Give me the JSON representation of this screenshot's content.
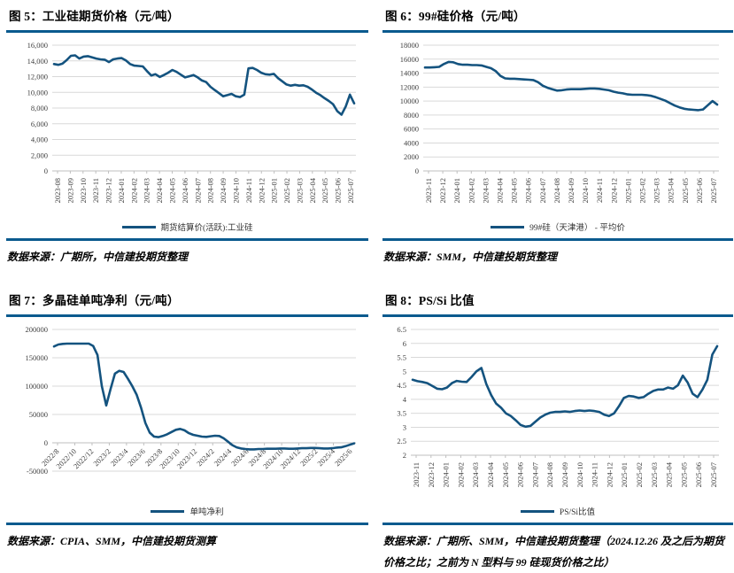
{
  "page": {
    "background": "#ffffff",
    "rule_color": "#0a5a8e",
    "line_color": "#14537f",
    "gridline_color": "#d9d9d9",
    "axis_color": "#bfbfbf"
  },
  "chart_data": [
    {
      "type": "line",
      "title": "图 5：工业硅期货价格（元/吨）",
      "legend": "期货结算价(活跃):工业硅",
      "source": "数据来源：广期所，中信建投期货整理",
      "ylim": [
        0,
        16000
      ],
      "grid": true,
      "legend_position": "bottom",
      "y_ticks": [
        "0",
        "2,000",
        "4,000",
        "6,000",
        "8,000",
        "10,000",
        "12,000",
        "14,000",
        "16,000"
      ],
      "x_tick_labels": [
        "2023-08",
        "2023-09",
        "2023-10",
        "2023-11",
        "2023-12",
        "2024-01",
        "2024-02",
        "2024-03",
        "2024-04",
        "2024-05",
        "2024-06",
        "2024-07",
        "2024-08",
        "2024-09",
        "2024-10",
        "2024-11",
        "2024-12",
        "2025-01",
        "2025-02",
        "2025-03",
        "2025-04",
        "2025-05",
        "2025-06",
        "2025-07"
      ],
      "values": [
        13600,
        13500,
        13650,
        14100,
        14650,
        14700,
        14300,
        14550,
        14600,
        14450,
        14300,
        14200,
        14150,
        13850,
        14200,
        14300,
        14350,
        14050,
        13600,
        13400,
        13350,
        13300,
        12700,
        12150,
        12300,
        11950,
        12200,
        12500,
        12850,
        12600,
        12250,
        11900,
        12050,
        12200,
        11900,
        11500,
        11300,
        10700,
        10300,
        9900,
        9500,
        9650,
        9800,
        9500,
        9400,
        9700,
        13050,
        13100,
        12850,
        12500,
        12300,
        12250,
        12350,
        11800,
        11400,
        11000,
        10850,
        10950,
        10850,
        10900,
        10700,
        10350,
        9950,
        9650,
        9250,
        8900,
        8500,
        7600,
        7150,
        8200,
        9700,
        8600
      ]
    },
    {
      "type": "line",
      "title": "图 6：99#硅价格（元/吨）",
      "legend": "99#硅（天津港） - 平均价",
      "source": "数据来源：SMM，中信建投期货整理",
      "ylim": [
        0,
        18000
      ],
      "grid": true,
      "legend_position": "bottom",
      "y_ticks": [
        "0",
        "2000",
        "4000",
        "6000",
        "8000",
        "10000",
        "12000",
        "14000",
        "16000",
        "18000"
      ],
      "x_tick_labels": [
        "2023-11",
        "2023-12",
        "2024-01",
        "2024-02",
        "2024-03",
        "2024-04",
        "2024-05",
        "2024-06",
        "2024-07",
        "2024-08",
        "2024-09",
        "2024-10",
        "2024-11",
        "2024-12",
        "2025-01",
        "2025-02",
        "2025-03",
        "2025-04",
        "2025-05",
        "2025-06",
        "2025-07"
      ],
      "values": [
        14800,
        14800,
        14850,
        14900,
        15300,
        15600,
        15550,
        15300,
        15200,
        15200,
        15150,
        15150,
        15100,
        14900,
        14700,
        14300,
        13600,
        13250,
        13200,
        13200,
        13150,
        13100,
        13050,
        13000,
        12700,
        12200,
        11900,
        11700,
        11500,
        11550,
        11650,
        11700,
        11700,
        11700,
        11750,
        11800,
        11800,
        11750,
        11650,
        11550,
        11350,
        11200,
        11100,
        10950,
        10900,
        10900,
        10900,
        10850,
        10750,
        10550,
        10300,
        10050,
        9700,
        9350,
        9100,
        8900,
        8800,
        8750,
        8700,
        8800,
        9400,
        10000,
        9500
      ]
    },
    {
      "type": "line",
      "title": "图 7：多晶硅单吨净利（元/吨）",
      "legend": "单吨净利",
      "source": "数据来源：CPIA、SMM，中信建投期货测算",
      "ylim": [
        -50000,
        200000
      ],
      "grid": true,
      "legend_position": "bottom",
      "y_ticks": [
        "-50000",
        "0",
        "50000",
        "100000",
        "150000",
        "200000"
      ],
      "x_tick_labels": [
        "2022/8",
        "2022/10",
        "2022/12",
        "2023/2",
        "2023/4",
        "2023/6",
        "2023/8",
        "2023/10",
        "2023/12",
        "2024/2",
        "2024/4",
        "2024/6",
        "2024/8",
        "2024/10",
        "2024/12",
        "2025/2",
        "2025/4",
        "2025/6"
      ],
      "values": [
        170000,
        173500,
        174500,
        175000,
        175000,
        175000,
        175000,
        175000,
        175000,
        171000,
        155000,
        100000,
        66000,
        95000,
        122000,
        127000,
        125000,
        113000,
        100000,
        85000,
        62000,
        35000,
        18000,
        11000,
        10000,
        12000,
        15000,
        19000,
        23000,
        24500,
        22000,
        17000,
        14000,
        12500,
        11000,
        10500,
        11500,
        12500,
        12000,
        8000,
        2000,
        -4000,
        -8000,
        -10000,
        -11000,
        -11500,
        -11500,
        -11000,
        -11000,
        -10500,
        -10500,
        -10500,
        -10000,
        -10000,
        -10500,
        -10500,
        -10000,
        -9500,
        -9500,
        -9000,
        -9000,
        -9500,
        -10000,
        -10000,
        -9500,
        -8500,
        -8000,
        -6000,
        -3500,
        -1000
      ]
    },
    {
      "type": "line",
      "title": "图 8：PS/Si 比值",
      "legend": "PS/Si比值",
      "source": "数据来源：广期所、SMM，中信建投期货整理（2024.12.26 及之后为期货价格之比；之前为 N 型料与 99 硅现货价格之比）",
      "ylim": [
        2,
        6.5
      ],
      "grid": true,
      "legend_position": "bottom",
      "y_ticks": [
        "2",
        "2.5",
        "3",
        "3.5",
        "4",
        "4.5",
        "5",
        "5.5",
        "6",
        "6.5"
      ],
      "x_tick_labels": [
        "2023-11",
        "2023-12",
        "2024-01",
        "2024-02",
        "2024-03",
        "2024-04",
        "2024-05",
        "2024-06",
        "2024-07",
        "2024-08",
        "2024-09",
        "2024-10",
        "2024-11",
        "2024-12",
        "2025-01",
        "2025-02",
        "2025-03",
        "2025-04",
        "2025-05",
        "2025-06",
        "2025-07"
      ],
      "values": [
        4.7,
        4.65,
        4.62,
        4.58,
        4.48,
        4.38,
        4.36,
        4.42,
        4.58,
        4.66,
        4.63,
        4.62,
        4.8,
        5.0,
        5.12,
        4.55,
        4.15,
        3.85,
        3.7,
        3.5,
        3.4,
        3.25,
        3.08,
        3.02,
        3.05,
        3.2,
        3.35,
        3.45,
        3.52,
        3.55,
        3.55,
        3.57,
        3.55,
        3.58,
        3.6,
        3.58,
        3.6,
        3.58,
        3.55,
        3.45,
        3.4,
        3.5,
        3.75,
        4.05,
        4.12,
        4.1,
        4.05,
        4.08,
        4.2,
        4.3,
        4.35,
        4.35,
        4.42,
        4.38,
        4.5,
        4.85,
        4.6,
        4.2,
        4.08,
        4.35,
        4.7,
        5.6,
        5.9
      ]
    }
  ]
}
